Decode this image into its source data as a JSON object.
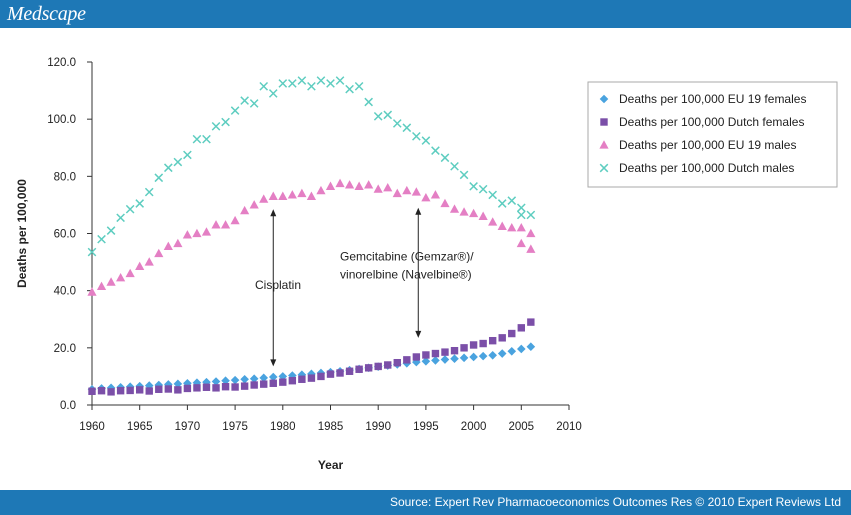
{
  "header": {
    "brand": "Medscape"
  },
  "footer": {
    "source": "Source: Expert Rev Pharmacoeconomics Outcomes Res © 2010 Expert Reviews Ltd"
  },
  "chart_data": {
    "type": "scatter",
    "xlabel": "Year",
    "ylabel": "Deaths per 100,000",
    "xlim": [
      1960,
      2010
    ],
    "ylim": [
      0,
      120
    ],
    "x_ticks": [
      1960,
      1965,
      1970,
      1975,
      1980,
      1985,
      1990,
      1995,
      2000,
      2005,
      2010
    ],
    "y_ticks": [
      "0.0",
      "20.0",
      "40.0",
      "60.0",
      "80.0",
      "100.0",
      "120.0"
    ],
    "grid": false,
    "legend_position": "right",
    "series": [
      {
        "name": "Deaths per 100,000 EU 19 females",
        "marker": "diamond",
        "color": "#4aa3df",
        "x": [
          1960,
          1961,
          1962,
          1963,
          1964,
          1965,
          1966,
          1967,
          1968,
          1969,
          1970,
          1971,
          1972,
          1973,
          1974,
          1975,
          1976,
          1977,
          1978,
          1979,
          1980,
          1981,
          1982,
          1983,
          1984,
          1985,
          1986,
          1987,
          1988,
          1989,
          1990,
          1991,
          1992,
          1993,
          1994,
          1995,
          1996,
          1997,
          1998,
          1999,
          2000,
          2001,
          2002,
          2003,
          2004,
          2005,
          2006
        ],
        "values": [
          5.5,
          5.8,
          6.0,
          6.2,
          6.4,
          6.6,
          6.8,
          7.0,
          7.2,
          7.4,
          7.6,
          7.8,
          8.0,
          8.2,
          8.5,
          8.7,
          9.0,
          9.2,
          9.5,
          9.8,
          10.0,
          10.3,
          10.6,
          10.9,
          11.2,
          11.5,
          11.8,
          12.2,
          12.6,
          13.0,
          13.4,
          13.8,
          14.2,
          14.6,
          15.0,
          15.3,
          15.6,
          15.9,
          16.2,
          16.5,
          16.8,
          17.1,
          17.4,
          18.0,
          18.8,
          19.6,
          20.4
        ]
      },
      {
        "name": "Deaths per 100,000 Dutch females",
        "marker": "square",
        "color": "#7b4fa8",
        "x": [
          1960,
          1961,
          1962,
          1963,
          1964,
          1965,
          1966,
          1967,
          1968,
          1969,
          1970,
          1971,
          1972,
          1973,
          1974,
          1975,
          1976,
          1977,
          1978,
          1979,
          1980,
          1981,
          1982,
          1983,
          1984,
          1985,
          1986,
          1987,
          1988,
          1989,
          1990,
          1991,
          1992,
          1993,
          1994,
          1995,
          1996,
          1997,
          1998,
          1999,
          2000,
          2001,
          2002,
          2003,
          2004,
          2005,
          2006
        ],
        "values": [
          4.8,
          5.0,
          4.6,
          5.0,
          5.1,
          5.3,
          4.9,
          5.5,
          5.6,
          5.3,
          5.8,
          6.0,
          6.2,
          6.0,
          6.4,
          6.3,
          6.6,
          7.0,
          7.3,
          7.6,
          8.0,
          8.5,
          9.0,
          9.4,
          10.0,
          10.8,
          11.2,
          11.8,
          12.5,
          13.0,
          13.5,
          14.0,
          14.8,
          15.8,
          16.8,
          17.5,
          18.0,
          18.5,
          19.0,
          20.0,
          21.0,
          21.5,
          22.5,
          23.5,
          25.0,
          27.0,
          29.0
        ]
      },
      {
        "name": "Deaths per 100,000 EU 19 males",
        "marker": "triangle",
        "color": "#e47fc4",
        "x": [
          1960,
          1961,
          1962,
          1963,
          1964,
          1965,
          1966,
          1967,
          1968,
          1969,
          1970,
          1971,
          1972,
          1973,
          1974,
          1975,
          1976,
          1977,
          1978,
          1979,
          1980,
          1981,
          1982,
          1983,
          1984,
          1985,
          1986,
          1987,
          1988,
          1989,
          1990,
          1991,
          1992,
          1993,
          1994,
          1995,
          1996,
          1997,
          1998,
          1999,
          2000,
          2001,
          2002,
          2003,
          2004,
          2005,
          2006
        ],
        "values": [
          39.5,
          41.5,
          43.0,
          44.5,
          46.0,
          48.5,
          50.0,
          53.0,
          55.5,
          56.5,
          59.5,
          60.0,
          60.5,
          63.0,
          63.0,
          64.5,
          68.0,
          70.0,
          72.0,
          73.0,
          73.0,
          73.5,
          74.0,
          73.0,
          75.0,
          76.5,
          77.5,
          77.0,
          76.5,
          77.0,
          75.5,
          76.0,
          74.0,
          75.0,
          74.5,
          72.5,
          73.5,
          70.5,
          68.5,
          67.5,
          67.0,
          66.0,
          64.0,
          62.5,
          62.0,
          62.0,
          60.0
        ]
      },
      {
        "name": "Deaths per 100,000 Dutch males",
        "marker": "x",
        "color": "#5ecdc0",
        "x": [
          1960,
          1961,
          1962,
          1963,
          1964,
          1965,
          1966,
          1967,
          1968,
          1969,
          1970,
          1971,
          1972,
          1973,
          1974,
          1975,
          1976,
          1977,
          1978,
          1979,
          1980,
          1981,
          1982,
          1983,
          1984,
          1985,
          1986,
          1987,
          1988,
          1989,
          1990,
          1991,
          1992,
          1993,
          1994,
          1995,
          1996,
          1997,
          1998,
          1999,
          2000,
          2001,
          2002,
          2003,
          2004,
          2005,
          2006
        ],
        "values": [
          53.5,
          58.0,
          61.0,
          65.5,
          68.5,
          70.5,
          74.5,
          79.5,
          83.0,
          85.0,
          87.5,
          93.0,
          93.0,
          97.5,
          99.0,
          103.0,
          106.5,
          105.5,
          111.5,
          109.0,
          112.5,
          112.5,
          113.5,
          111.5,
          113.5,
          112.5,
          113.5,
          110.5,
          111.5,
          106.0,
          101.0,
          101.5,
          98.5,
          97.0,
          94.0,
          92.5,
          89.0,
          86.5,
          83.5,
          80.5,
          76.5,
          75.5,
          73.5,
          70.5,
          71.5,
          69.0,
          66.5
        ]
      }
    ],
    "extra_points": [
      {
        "series": 2,
        "x": 2005,
        "value": 56.5
      },
      {
        "series": 2,
        "x": 2006,
        "value": 54.5
      },
      {
        "series": 3,
        "x": 2005,
        "value": 66.5
      }
    ],
    "annotations": [
      {
        "id": "cisplatin",
        "label_lines": [
          "Cisplatin"
        ],
        "arrow_x": 1979,
        "arrow_top": 68.5,
        "arrow_bottom": 13.5,
        "text_x": 1979.5,
        "text_y": 40.5
      },
      {
        "id": "gemcitabine",
        "label_lines": [
          "Gemcitabine (Gemzar®)/",
          "vinorelbine (Navelbine®)"
        ],
        "arrow_x": 1994.2,
        "arrow_top": 69.0,
        "arrow_bottom": 23.5,
        "text_x": 1986,
        "text_y": 50.5
      }
    ]
  }
}
